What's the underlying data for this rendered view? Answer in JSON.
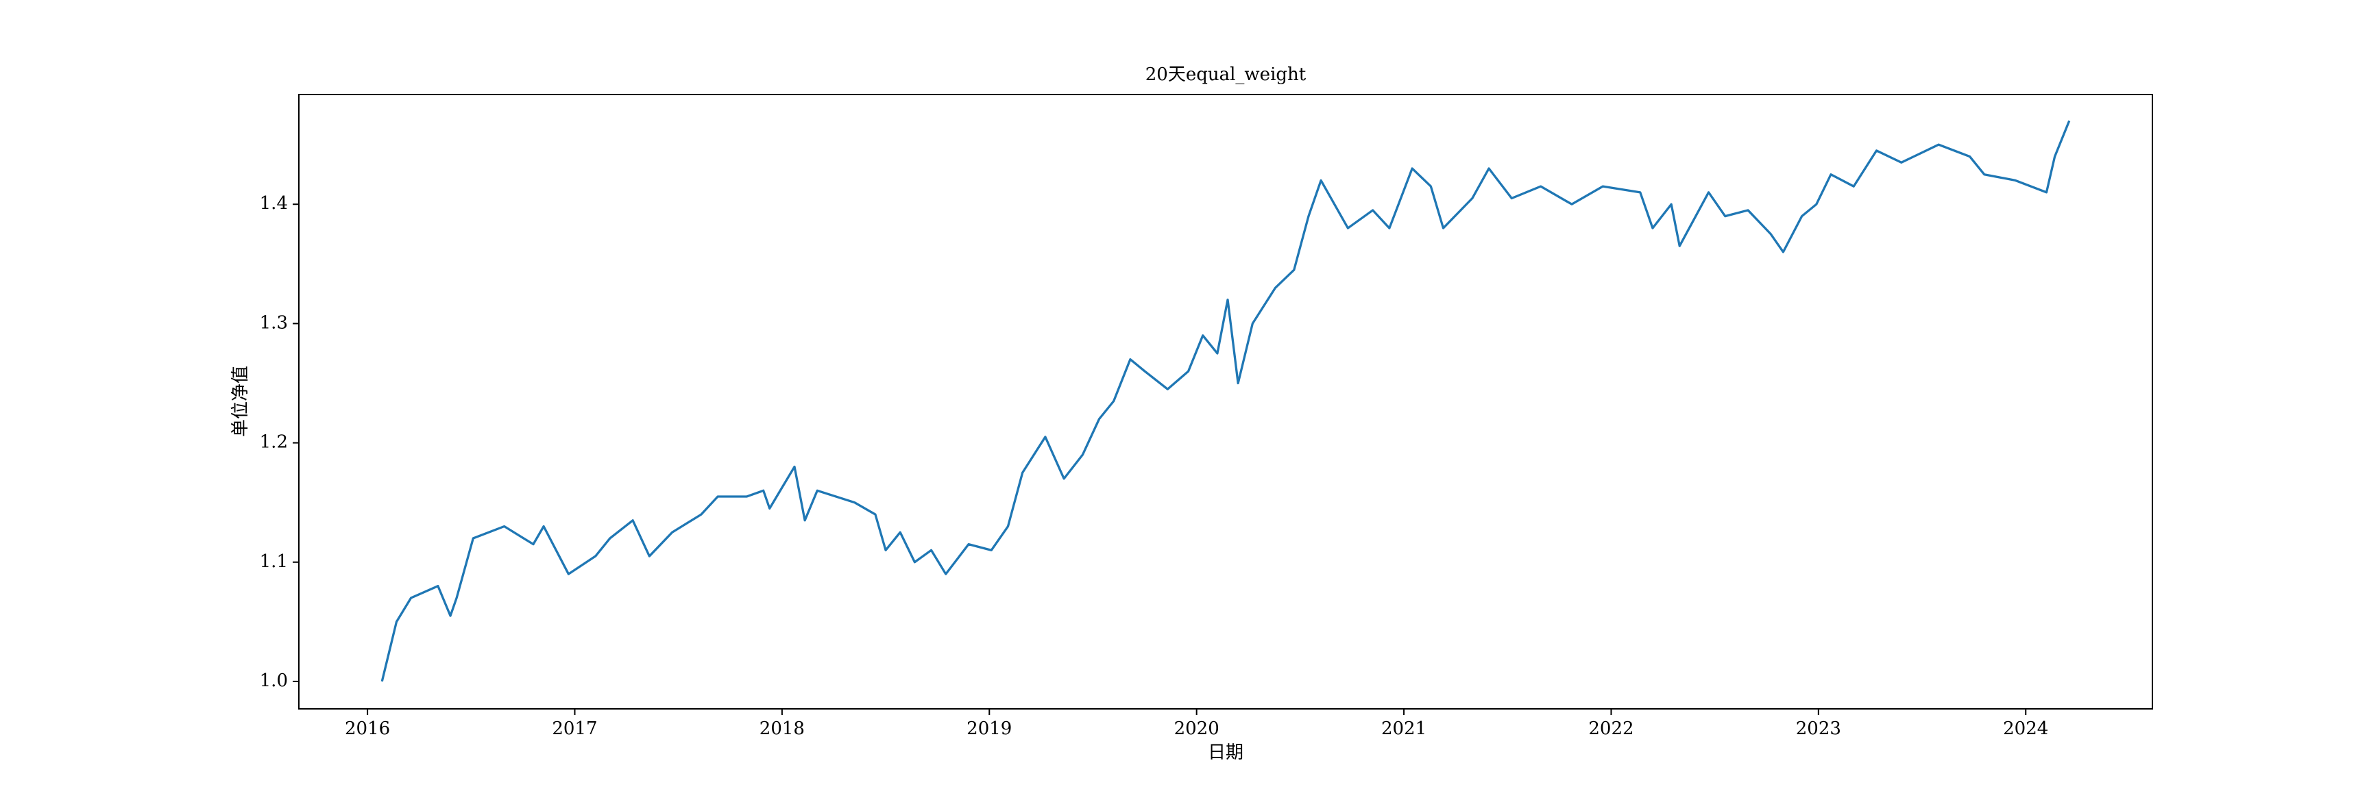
{
  "chart_data": {
    "type": "line",
    "title": "20天equal_weight",
    "x_label": "日期",
    "y_label": "单位净值",
    "series": [
      {
        "name": "equal_weight",
        "color": "#1f77b4",
        "x": [
          2016.07,
          2016.14,
          2016.21,
          2016.34,
          2016.4,
          2016.43,
          2016.51,
          2016.66,
          2016.8,
          2016.85,
          2016.97,
          2017.1,
          2017.17,
          2017.28,
          2017.36,
          2017.47,
          2017.61,
          2017.69,
          2017.83,
          2017.91,
          2017.94,
          2018.06,
          2018.11,
          2018.17,
          2018.35,
          2018.45,
          2018.5,
          2018.57,
          2018.64,
          2018.72,
          2018.79,
          2018.9,
          2019.01,
          2019.09,
          2019.16,
          2019.27,
          2019.36,
          2019.45,
          2019.53,
          2019.6,
          2019.68,
          2019.75,
          2019.86,
          2019.96,
          2020.03,
          2020.1,
          2020.15,
          2020.2,
          2020.27,
          2020.38,
          2020.47,
          2020.54,
          2020.6,
          2020.73,
          2020.85,
          2020.93,
          2021.04,
          2021.13,
          2021.19,
          2021.33,
          2021.41,
          2021.52,
          2021.66,
          2021.81,
          2021.96,
          2022.14,
          2022.2,
          2022.29,
          2022.33,
          2022.47,
          2022.55,
          2022.66,
          2022.77,
          2022.83,
          2022.92,
          2022.99,
          2023.06,
          2023.17,
          2023.28,
          2023.4,
          2023.58,
          2023.73,
          2023.8,
          2023.95,
          2024.1,
          2024.14,
          2024.21
        ],
        "values": [
          1.0,
          1.05,
          1.07,
          1.08,
          1.055,
          1.07,
          1.12,
          1.13,
          1.115,
          1.13,
          1.09,
          1.105,
          1.12,
          1.135,
          1.105,
          1.125,
          1.14,
          1.155,
          1.155,
          1.16,
          1.145,
          1.18,
          1.135,
          1.16,
          1.15,
          1.14,
          1.11,
          1.125,
          1.1,
          1.11,
          1.09,
          1.115,
          1.11,
          1.13,
          1.175,
          1.205,
          1.17,
          1.19,
          1.22,
          1.235,
          1.27,
          1.26,
          1.245,
          1.26,
          1.29,
          1.275,
          1.32,
          1.25,
          1.3,
          1.33,
          1.345,
          1.39,
          1.42,
          1.38,
          1.395,
          1.38,
          1.43,
          1.415,
          1.38,
          1.405,
          1.43,
          1.405,
          1.415,
          1.4,
          1.415,
          1.41,
          1.38,
          1.4,
          1.365,
          1.41,
          1.39,
          1.395,
          1.375,
          1.36,
          1.39,
          1.4,
          1.425,
          1.415,
          1.445,
          1.435,
          1.45,
          1.44,
          1.425,
          1.42,
          1.41,
          1.44,
          1.47
        ]
      }
    ],
    "xlim": [
      2015.669,
      2024.611
    ],
    "xticks": [
      2016,
      2017,
      2018,
      2019,
      2020,
      2021,
      2022,
      2023,
      2024
    ],
    "ylim": [
      0.977,
      1.492
    ],
    "yticks": [
      {
        "value": 1.0,
        "label": "1.0"
      },
      1.1,
      1.2,
      1.3,
      1.4
    ]
  }
}
